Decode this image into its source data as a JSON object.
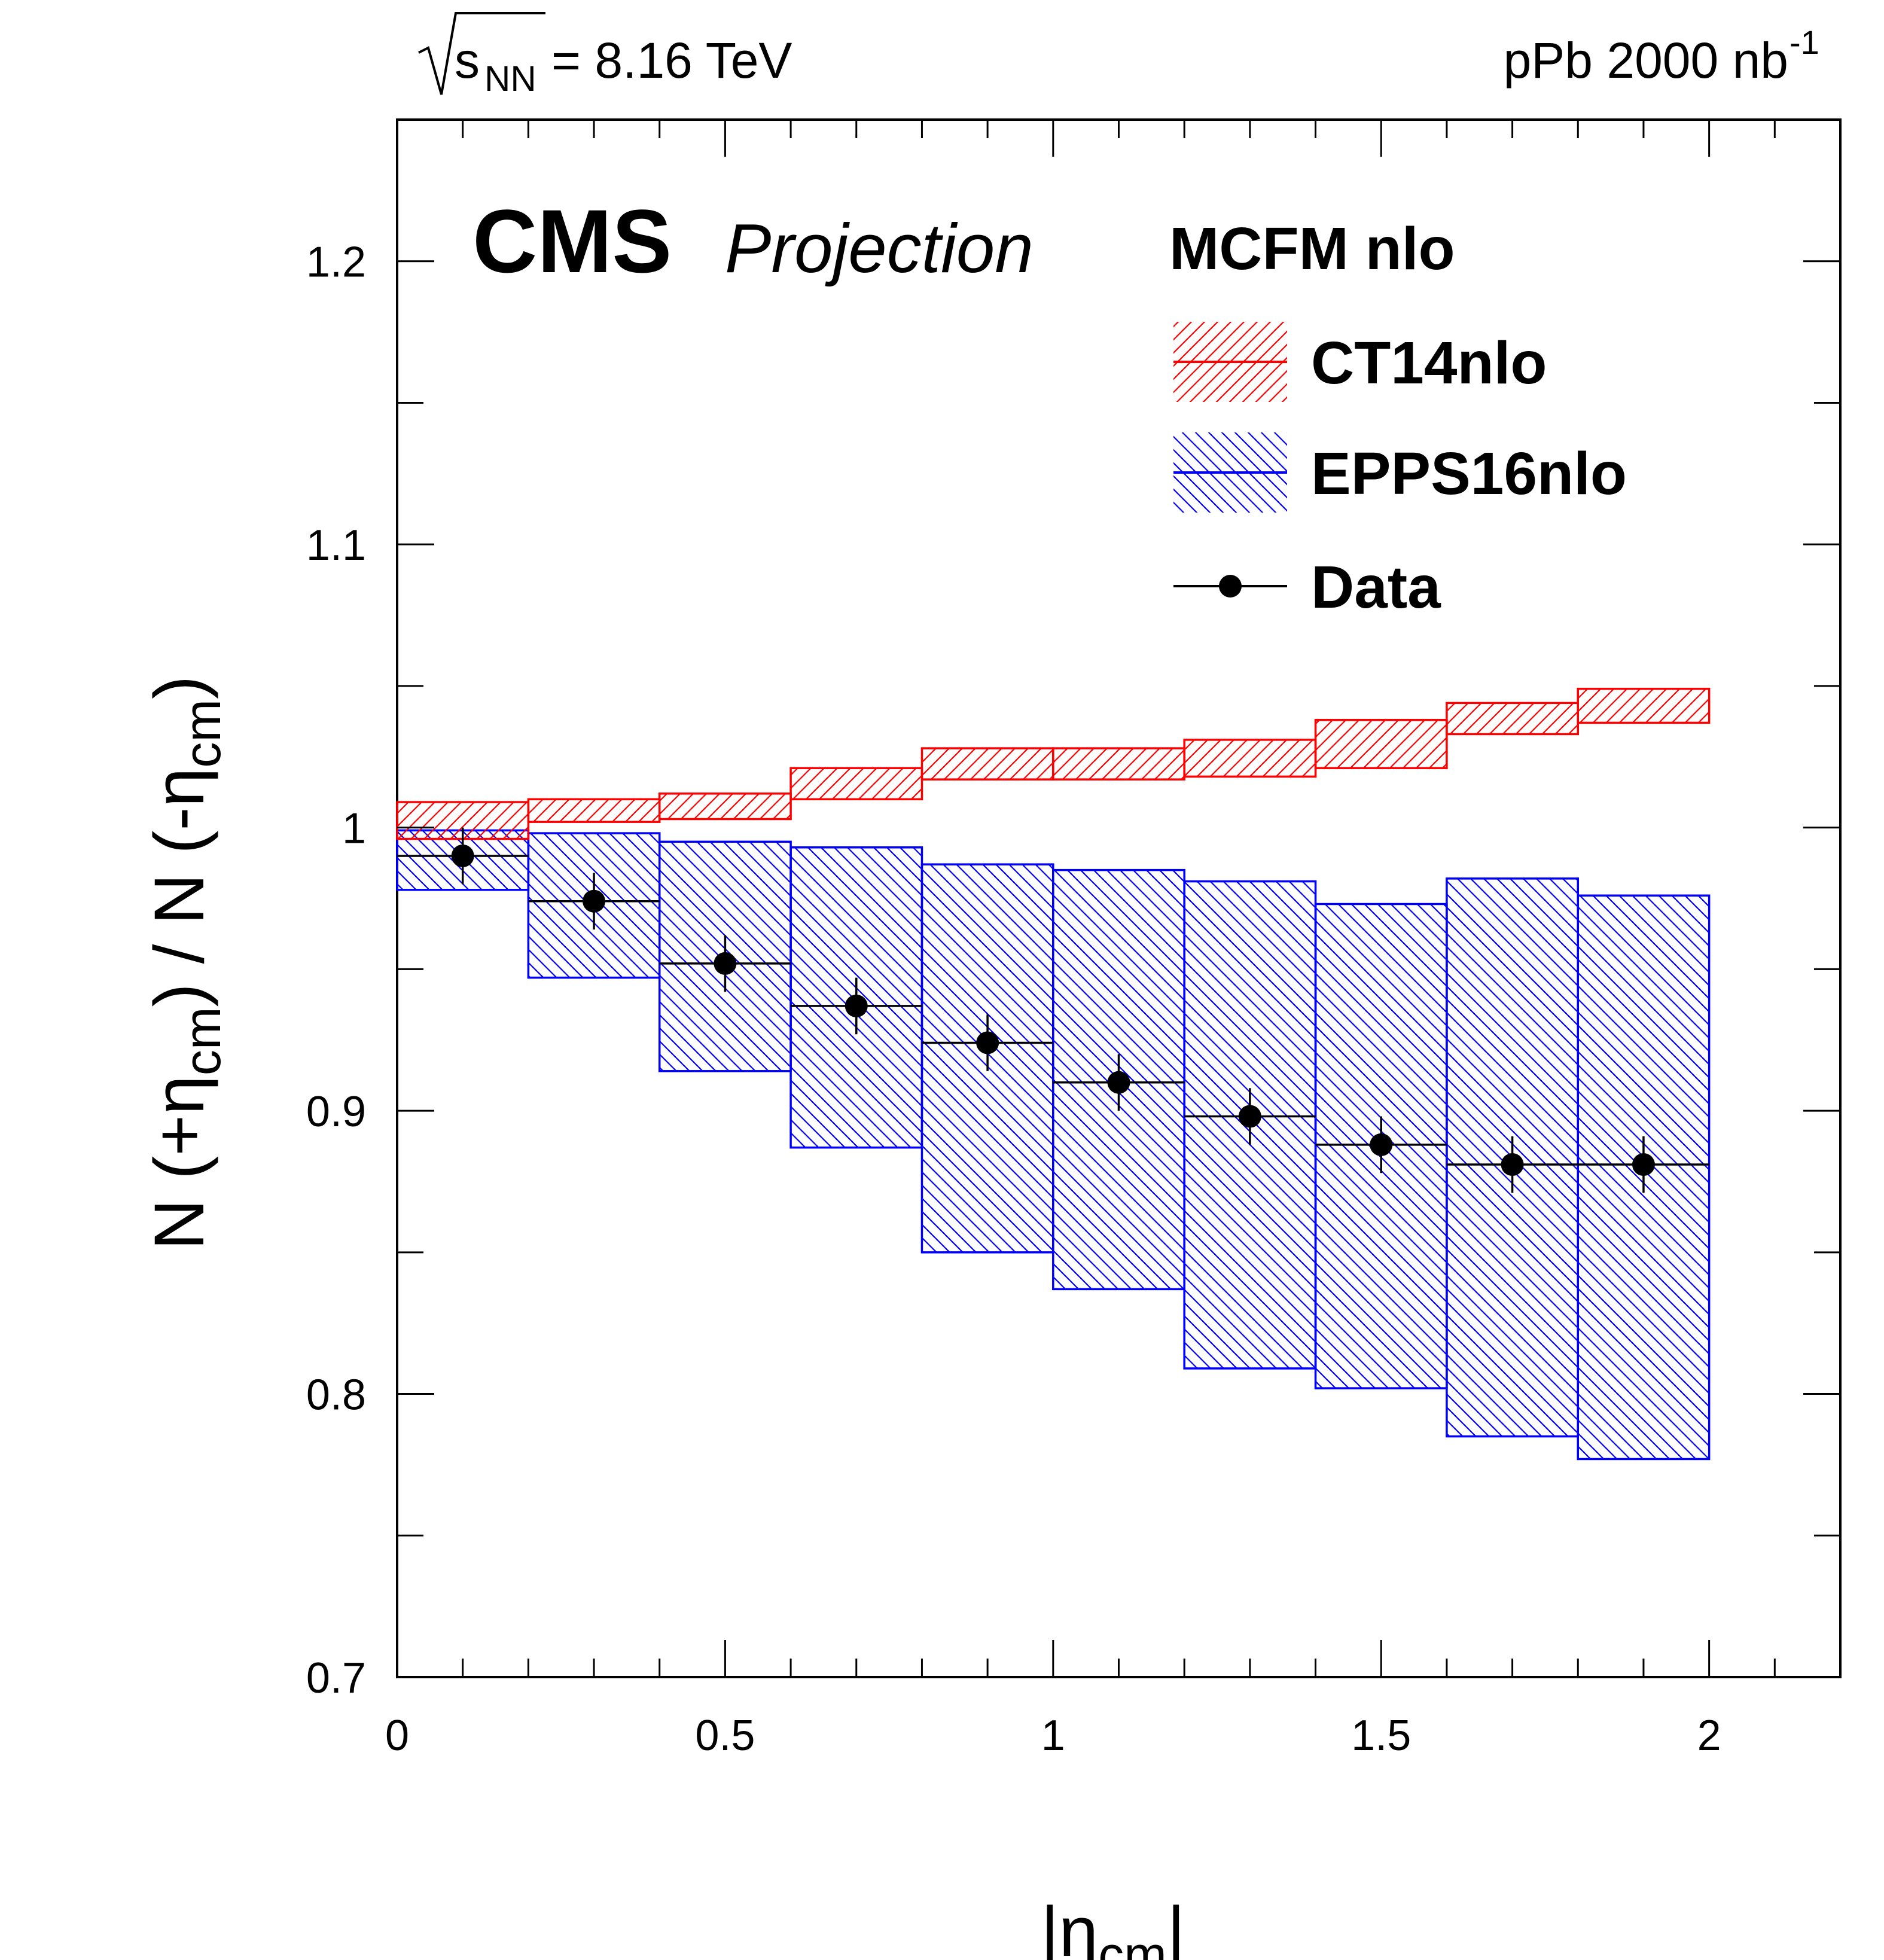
{
  "header": {
    "energy_sqrt": "s",
    "energy_sub": "NN",
    "energy_value": " = 8.16 TeV",
    "lumi_text": "pPb 2000 nb",
    "lumi_sup": "-1"
  },
  "labels": {
    "cms": "CMS",
    "projection": "Projection",
    "legend_title": "MCFM nlo"
  },
  "chart_data": {
    "type": "bar",
    "xlabel": "|η_cm|",
    "ylabel": "N (+η_cm) / N (-η_cm)",
    "xlim": [
      0,
      2.2
    ],
    "ylim": [
      0.7,
      1.25
    ],
    "x_ticks": [
      0,
      0.5,
      1,
      1.5,
      2
    ],
    "x_tick_labels": [
      "0",
      "0.5",
      "1",
      "1.5",
      "2"
    ],
    "y_ticks": [
      0.7,
      0.8,
      0.9,
      1.0,
      1.1,
      1.2
    ],
    "y_tick_labels": [
      "0.7",
      "0.8",
      "0.9",
      "1",
      "1.1",
      "1.2"
    ],
    "bin_edges": [
      0,
      0.2,
      0.4,
      0.6,
      0.8,
      1.0,
      1.2,
      1.4,
      1.6,
      1.8,
      2.0
    ],
    "legend_position": "top-right",
    "series": [
      {
        "name": "CT14nlo",
        "kind": "band",
        "color": "#ff0000",
        "hatch": "forward",
        "low": [
          0.996,
          1.002,
          1.003,
          1.01,
          1.017,
          1.017,
          1.018,
          1.021,
          1.033,
          1.037
        ],
        "high": [
          1.009,
          1.01,
          1.012,
          1.021,
          1.028,
          1.028,
          1.031,
          1.038,
          1.044,
          1.049
        ]
      },
      {
        "name": "EPPS16nlo",
        "kind": "band",
        "color": "#0000ff",
        "hatch": "backward",
        "low": [
          0.978,
          0.947,
          0.914,
          0.887,
          0.85,
          0.837,
          0.809,
          0.802,
          0.785,
          0.777
        ],
        "high": [
          0.999,
          0.998,
          0.995,
          0.993,
          0.987,
          0.985,
          0.981,
          0.973,
          0.982,
          0.976
        ]
      },
      {
        "name": "Data",
        "kind": "points",
        "color": "#000000",
        "x": [
          0.1,
          0.3,
          0.5,
          0.7,
          0.9,
          1.1,
          1.3,
          1.5,
          1.7,
          1.9
        ],
        "y": [
          0.99,
          0.974,
          0.952,
          0.937,
          0.924,
          0.91,
          0.898,
          0.888,
          0.881,
          0.881
        ],
        "err": [
          0.01,
          0.01,
          0.01,
          0.01,
          0.01,
          0.01,
          0.01,
          0.01,
          0.01,
          0.01
        ]
      }
    ]
  }
}
